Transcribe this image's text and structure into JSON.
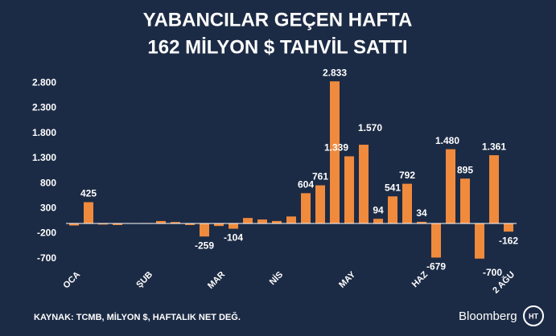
{
  "chart_data": {
    "type": "bar",
    "title": "YABANCILAR GEÇEN HAFTA",
    "subtitle": "162 MİLYON $ TAHVİL SATTI",
    "source": "KAYNAK: TCMB, MİLYON $, HAFTALIK NET DEĞ.",
    "brand": "Bloomberg",
    "logo": "HT",
    "color": "#f08a3c",
    "categories": [
      "OCA",
      null,
      null,
      null,
      null,
      "ŞUB",
      null,
      null,
      null,
      null,
      "MAR",
      null,
      null,
      null,
      "NİS",
      null,
      null,
      null,
      null,
      "MAY",
      null,
      null,
      null,
      null,
      "HAZ",
      null,
      null,
      null,
      null,
      null,
      "2 AĞU"
    ],
    "values": [
      -40,
      425,
      -20,
      -30,
      0,
      10,
      50,
      30,
      -30,
      -259,
      -50,
      -104,
      110,
      80,
      50,
      140,
      604,
      761,
      2833,
      1339,
      1570,
      94,
      541,
      792,
      34,
      -679,
      1480,
      895,
      -700,
      1361,
      -162
    ],
    "value_labels": [
      null,
      "425",
      null,
      null,
      null,
      null,
      null,
      null,
      null,
      "-259",
      null,
      "-104",
      null,
      null,
      null,
      null,
      "604",
      "761",
      "2.833",
      "1.339",
      "1.570",
      "94",
      "541",
      "792",
      "34",
      "-679",
      "1.480",
      "895",
      "-700",
      "1.361",
      "-162"
    ],
    "ylim": [
      -800,
      2900
    ],
    "yticks": [
      -700,
      -200,
      300,
      800,
      {
        "value": 1300,
        "label": "1.300"
      },
      {
        "value": 1800,
        "label": "1.800"
      },
      {
        "value": 2300,
        "label": "2.300"
      },
      {
        "value": 2800,
        "label": "2.800"
      }
    ],
    "grid": false
  }
}
